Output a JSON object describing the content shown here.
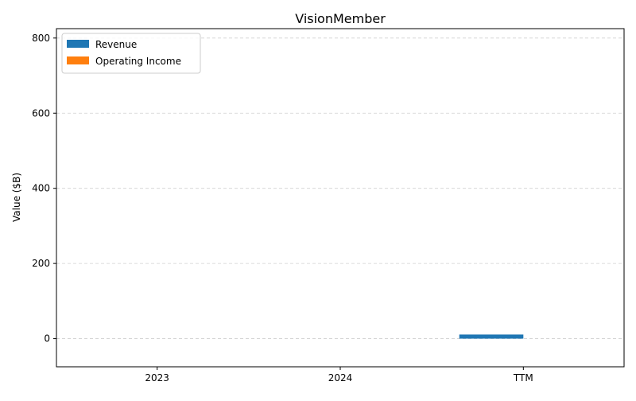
{
  "chart_data": {
    "type": "bar",
    "title": "VisionMember",
    "xlabel": "",
    "ylabel": "Value ($B)",
    "categories": [
      "2023",
      "2024",
      "TTM"
    ],
    "series": [
      {
        "name": "Revenue",
        "values": [
          0,
          0,
          10.9
        ],
        "color": "#1f77b4"
      },
      {
        "name": "Operating Income",
        "values": [
          0,
          0,
          0
        ],
        "color": "#ff7f0e"
      }
    ],
    "ylim": [
      -75,
      825
    ],
    "yticks": [
      0,
      200,
      400,
      600,
      800
    ],
    "ytick_labels": [
      "0",
      "200",
      "400",
      "600",
      "800"
    ],
    "grid": true,
    "legend_position": "top-left"
  }
}
